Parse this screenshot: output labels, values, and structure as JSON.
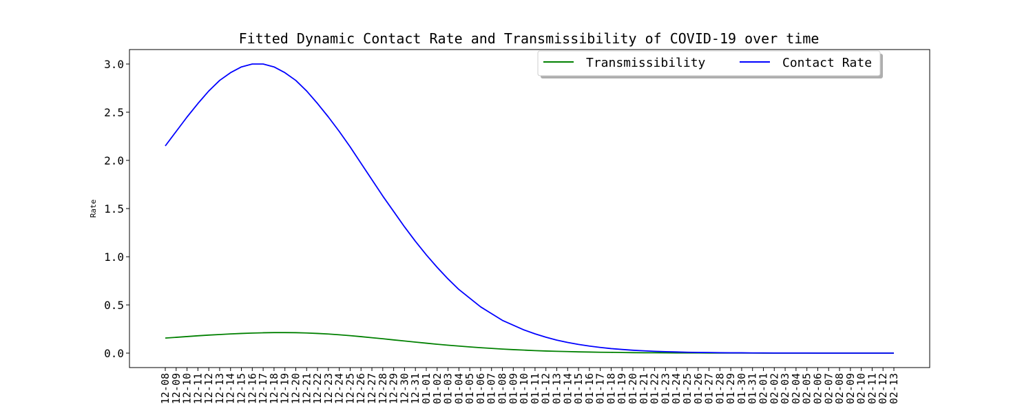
{
  "chart_data": {
    "type": "line",
    "title": "Fitted Dynamic Contact Rate and Transmissibility of COVID-19 over time",
    "xlabel": "",
    "ylabel": "Rate",
    "ylim": [
      -0.15,
      3.15
    ],
    "yticks": [
      "0.0",
      "0.5",
      "1.0",
      "1.5",
      "2.0",
      "2.5",
      "3.0"
    ],
    "grid": false,
    "legend_position": "top-right",
    "categories": [
      "12-08",
      "12-09",
      "12-10",
      "12-11",
      "12-12",
      "12-13",
      "12-14",
      "12-15",
      "12-16",
      "12-17",
      "12-18",
      "12-19",
      "12-20",
      "12-21",
      "12-22",
      "12-23",
      "12-24",
      "12-25",
      "12-26",
      "12-27",
      "12-28",
      "12-29",
      "12-30",
      "12-31",
      "01-01",
      "01-02",
      "01-03",
      "01-04",
      "01-05",
      "01-06",
      "01-07",
      "01-08",
      "01-09",
      "01-10",
      "01-11",
      "01-12",
      "01-13",
      "01-14",
      "01-15",
      "01-16",
      "01-17",
      "01-18",
      "01-19",
      "01-20",
      "01-21",
      "01-22",
      "01-23",
      "01-24",
      "01-25",
      "01-26",
      "01-27",
      "01-28",
      "01-29",
      "01-30",
      "01-31",
      "02-01",
      "02-02",
      "02-03",
      "02-04",
      "02-05",
      "02-06",
      "02-07",
      "02-08",
      "02-09",
      "02-10",
      "02-11",
      "02-12",
      "02-13"
    ],
    "series": [
      {
        "name": "Transmissibility",
        "color": "#008000",
        "values": [
          0.156,
          0.164,
          0.172,
          0.18,
          0.187,
          0.193,
          0.199,
          0.204,
          0.208,
          0.211,
          0.213,
          0.213,
          0.212,
          0.209,
          0.204,
          0.198,
          0.19,
          0.181,
          0.171,
          0.16,
          0.149,
          0.137,
          0.126,
          0.114,
          0.103,
          0.092,
          0.082,
          0.073,
          0.064,
          0.056,
          0.049,
          0.042,
          0.036,
          0.031,
          0.026,
          0.022,
          0.019,
          0.016,
          0.013,
          0.011,
          0.009,
          0.008,
          0.006,
          0.005,
          0.004,
          0.004,
          0.003,
          0.002,
          0.002,
          0.002,
          0.001,
          0.001,
          0.001,
          0.001,
          0.001,
          0.0,
          0.0,
          0.0,
          0.0,
          0.0,
          0.0,
          0.0,
          0.0,
          0.0,
          0.0,
          0.0,
          0.0,
          0.0
        ]
      },
      {
        "name": "Contact Rate",
        "color": "#0000ff",
        "values": [
          2.15,
          2.3,
          2.45,
          2.59,
          2.72,
          2.83,
          2.91,
          2.97,
          3.0,
          3.0,
          2.97,
          2.91,
          2.83,
          2.72,
          2.59,
          2.45,
          2.3,
          2.14,
          1.97,
          1.8,
          1.63,
          1.47,
          1.31,
          1.16,
          1.02,
          0.89,
          0.77,
          0.66,
          0.57,
          0.48,
          0.41,
          0.34,
          0.29,
          0.24,
          0.2,
          0.165,
          0.135,
          0.111,
          0.09,
          0.073,
          0.059,
          0.047,
          0.038,
          0.03,
          0.024,
          0.019,
          0.015,
          0.012,
          0.009,
          0.007,
          0.006,
          0.004,
          0.003,
          0.003,
          0.002,
          0.002,
          0.001,
          0.001,
          0.001,
          0.001,
          0.0,
          0.0,
          0.0,
          0.0,
          0.0,
          0.0,
          0.0,
          0.0
        ]
      }
    ]
  }
}
